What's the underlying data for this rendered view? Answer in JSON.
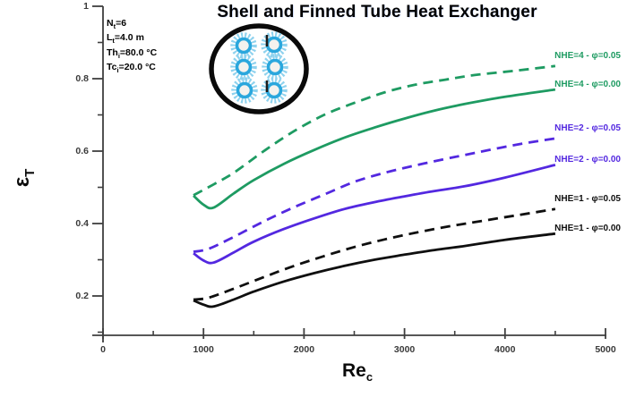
{
  "chart_data": {
    "type": "line",
    "title": "Shell and Finned Tube Heat Exchanger",
    "xlabel": {
      "base": "Re",
      "sub": "c"
    },
    "ylabel": {
      "base": "ε",
      "sub": "T"
    },
    "xlim": [
      0,
      5000
    ],
    "ylim": [
      0.1,
      1.0
    ],
    "grid": false,
    "x_ticks": [
      "0",
      "1000",
      "2000",
      "3000",
      "4000",
      "5000"
    ],
    "x_tick_values": [
      0,
      1000,
      2000,
      3000,
      4000,
      5000
    ],
    "x_minor_tick_values": [
      500,
      1500,
      2500,
      3500,
      4500
    ],
    "y_ticks": [
      "1",
      "0.8",
      "0.6",
      "0.4",
      "0.2"
    ],
    "y_tick_values": [
      1.0,
      0.8,
      0.6,
      0.4,
      0.2
    ],
    "y_minor_tick_values": [
      0.9,
      0.7,
      0.5,
      0.3,
      0.1
    ],
    "annotations": [
      {
        "pre": "N",
        "sub": "t",
        "post": "=6"
      },
      {
        "pre": "L",
        "sub": "t",
        "post": "=4.0 m"
      },
      {
        "pre": "Th",
        "sub": "i",
        "post": "=80.0 °C"
      },
      {
        "pre": "Tc",
        "sub": "i",
        "post": "=20.0 °C"
      }
    ],
    "legend_position": "right of curve ends",
    "series": [
      {
        "name": "NHE=4 - φ=0.05",
        "color": "#1e9b62",
        "style": "dashed",
        "points": [
          [
            900,
            0.478
          ],
          [
            1100,
            0.508
          ],
          [
            1300,
            0.54
          ],
          [
            1600,
            0.6
          ],
          [
            1900,
            0.655
          ],
          [
            2200,
            0.7
          ],
          [
            2500,
            0.733
          ],
          [
            2800,
            0.762
          ],
          [
            3100,
            0.783
          ],
          [
            3400,
            0.797
          ],
          [
            3700,
            0.81
          ],
          [
            4100,
            0.822
          ],
          [
            4500,
            0.835
          ]
        ]
      },
      {
        "name": "NHE=4 - φ=0.00",
        "color": "#1e9b62",
        "style": "solid",
        "points": [
          [
            900,
            0.477
          ],
          [
            1000,
            0.452
          ],
          [
            1100,
            0.444
          ],
          [
            1300,
            0.483
          ],
          [
            1500,
            0.52
          ],
          [
            1800,
            0.565
          ],
          [
            2100,
            0.603
          ],
          [
            2400,
            0.637
          ],
          [
            2700,
            0.665
          ],
          [
            3000,
            0.69
          ],
          [
            3300,
            0.712
          ],
          [
            3600,
            0.73
          ],
          [
            4000,
            0.75
          ],
          [
            4500,
            0.77
          ]
        ]
      },
      {
        "name": "NHE=2 - φ=0.05",
        "color": "#5328e0",
        "style": "dashed",
        "points": [
          [
            900,
            0.322
          ],
          [
            1050,
            0.33
          ],
          [
            1300,
            0.363
          ],
          [
            1600,
            0.406
          ],
          [
            1900,
            0.445
          ],
          [
            2200,
            0.48
          ],
          [
            2500,
            0.515
          ],
          [
            2800,
            0.54
          ],
          [
            3100,
            0.56
          ],
          [
            3400,
            0.578
          ],
          [
            3700,
            0.595
          ],
          [
            4100,
            0.617
          ],
          [
            4500,
            0.635
          ]
        ]
      },
      {
        "name": "NHE=2 - φ=0.00",
        "color": "#5328e0",
        "style": "solid",
        "points": [
          [
            900,
            0.318
          ],
          [
            1000,
            0.298
          ],
          [
            1100,
            0.292
          ],
          [
            1300,
            0.32
          ],
          [
            1500,
            0.35
          ],
          [
            1800,
            0.385
          ],
          [
            2100,
            0.414
          ],
          [
            2400,
            0.44
          ],
          [
            2700,
            0.459
          ],
          [
            3000,
            0.475
          ],
          [
            3300,
            0.49
          ],
          [
            3600,
            0.503
          ],
          [
            4000,
            0.527
          ],
          [
            4500,
            0.562
          ]
        ]
      },
      {
        "name": "NHE=1 - φ=0.05",
        "color": "#0f0f0f",
        "style": "dashed",
        "points": [
          [
            900,
            0.19
          ],
          [
            1050,
            0.195
          ],
          [
            1300,
            0.22
          ],
          [
            1600,
            0.252
          ],
          [
            1900,
            0.283
          ],
          [
            2200,
            0.31
          ],
          [
            2500,
            0.335
          ],
          [
            2800,
            0.356
          ],
          [
            3100,
            0.374
          ],
          [
            3400,
            0.39
          ],
          [
            3700,
            0.404
          ],
          [
            4100,
            0.422
          ],
          [
            4500,
            0.44
          ]
        ]
      },
      {
        "name": "NHE=1 - φ=0.00",
        "color": "#0f0f0f",
        "style": "solid",
        "points": [
          [
            900,
            0.188
          ],
          [
            1000,
            0.176
          ],
          [
            1100,
            0.171
          ],
          [
            1300,
            0.19
          ],
          [
            1500,
            0.212
          ],
          [
            1800,
            0.24
          ],
          [
            2100,
            0.263
          ],
          [
            2400,
            0.283
          ],
          [
            2700,
            0.3
          ],
          [
            3000,
            0.314
          ],
          [
            3300,
            0.327
          ],
          [
            3600,
            0.338
          ],
          [
            4000,
            0.355
          ],
          [
            4500,
            0.372
          ]
        ]
      }
    ],
    "inset": {
      "name": "shell cross-section with finned tubes",
      "tube_rows": 3,
      "tube_cols": 2
    }
  },
  "colors": {
    "green_series": "#1e9b62",
    "blue_series": "#5328e0",
    "black_series": "#0f0f0f",
    "axis": "#3f3f3f",
    "tick_label": "#3a3a3a",
    "inset_fins": "#8ed2ee",
    "inset_tube_ring": "#2aa7dd",
    "inset_shell": "#0a0a0a"
  }
}
